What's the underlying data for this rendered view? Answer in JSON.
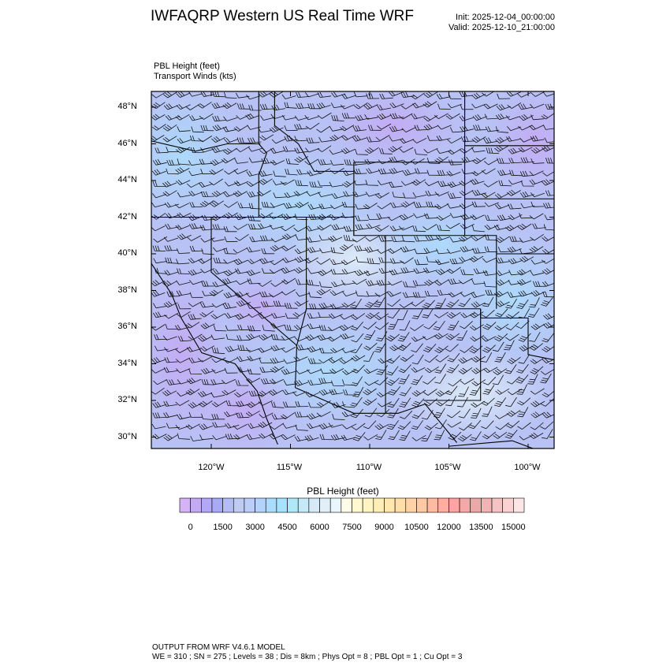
{
  "header": {
    "title": "IWFAQRP Western US Real Time WRF",
    "init": "Init: 2025-12-04_00:00:00",
    "valid": "Valid: 2025-12-10_21:00:00",
    "field_label": "PBL Height   (feet)",
    "overlay_label": "Transport Winds   (kts)"
  },
  "map": {
    "lat_ticks": [
      "48°N",
      "46°N",
      "44°N",
      "42°N",
      "40°N",
      "38°N",
      "36°N",
      "34°N",
      "32°N",
      "30°N"
    ],
    "lon_ticks": [
      "120°W",
      "115°W",
      "110°W",
      "105°W",
      "100°W"
    ],
    "dominant_field_colors": [
      "#b3a8f5",
      "#b3d3fa",
      "#c4aaf4",
      "#acdcfb"
    ]
  },
  "colorbar": {
    "title": "PBL Height  (feet)",
    "labels": [
      "0",
      "1500",
      "3000",
      "4500",
      "6000",
      "7500",
      "9000",
      "10500",
      "12000",
      "13500",
      "15000"
    ],
    "colors": [
      "#d6b3f5",
      "#c4aaf4",
      "#b3a8f5",
      "#a8aaf5",
      "#b4bcf4",
      "#c0cbf4",
      "#bccdf7",
      "#b3d3fa",
      "#acdcfb",
      "#a6e2fb",
      "#b0e8f8",
      "#c6e9f8",
      "#d6e9f6",
      "#e0eff8",
      "#e9f6fb",
      "#fffce8",
      "#fff8d0",
      "#fff4c2",
      "#ffeeb5",
      "#ffe7ad",
      "#ffdfa7",
      "#ffd3a5",
      "#ffc9a3",
      "#ffbba1",
      "#ffaea0",
      "#ffa3a3",
      "#f5a8a8",
      "#eba8a8",
      "#f0b4b4",
      "#f5c3c3",
      "#fad2d2",
      "#fde5e5"
    ]
  },
  "footer": {
    "line1": "OUTPUT FROM WRF V4.6.1 MODEL",
    "line2": "WE = 310 ; SN = 275 ; Levels = 38 ; Dis = 8km ; Phys Opt = 8 ; PBL Opt = 1 ; Cu Opt = 3"
  }
}
